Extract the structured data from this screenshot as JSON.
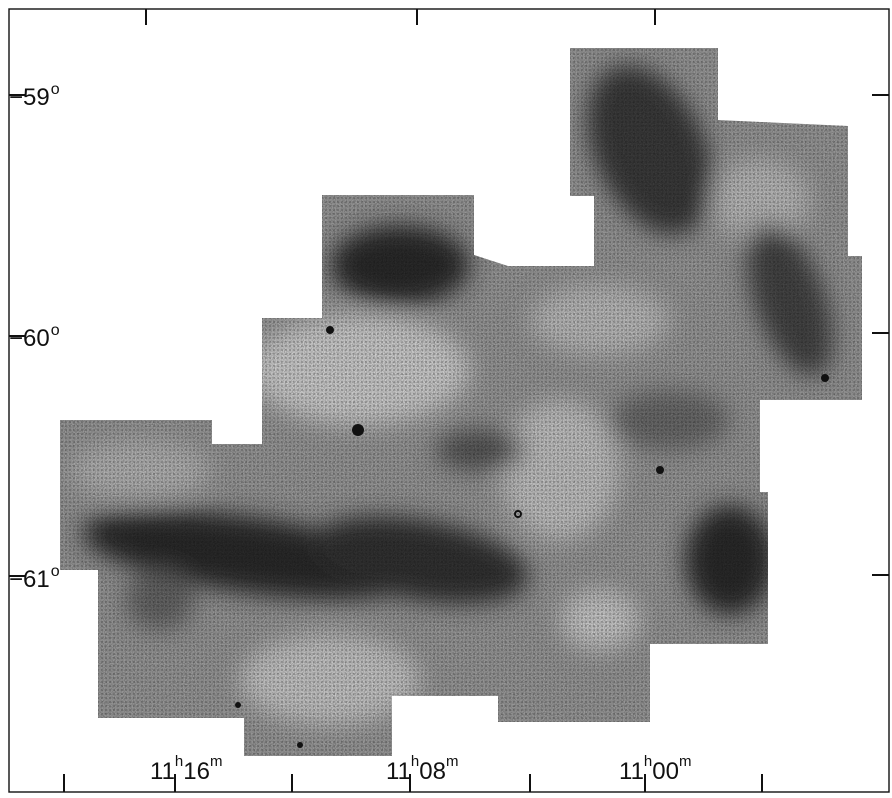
{
  "colors": {
    "ink": "#111111",
    "background": "#ffffff"
  },
  "dec_labels": [
    {
      "sign": "−",
      "value": "59",
      "unit": "o"
    },
    {
      "sign": "−",
      "value": "60",
      "unit": "o"
    },
    {
      "sign": "−",
      "value": "61",
      "unit": "o"
    }
  ],
  "ra_labels": [
    {
      "h": "11",
      "h_unit": "h",
      "m": "16",
      "m_unit": "m"
    },
    {
      "h": "11",
      "h_unit": "h",
      "m": "08",
      "m_unit": "m"
    },
    {
      "h": "11",
      "h_unit": "h",
      "m": "00",
      "m_unit": "m"
    }
  ]
}
